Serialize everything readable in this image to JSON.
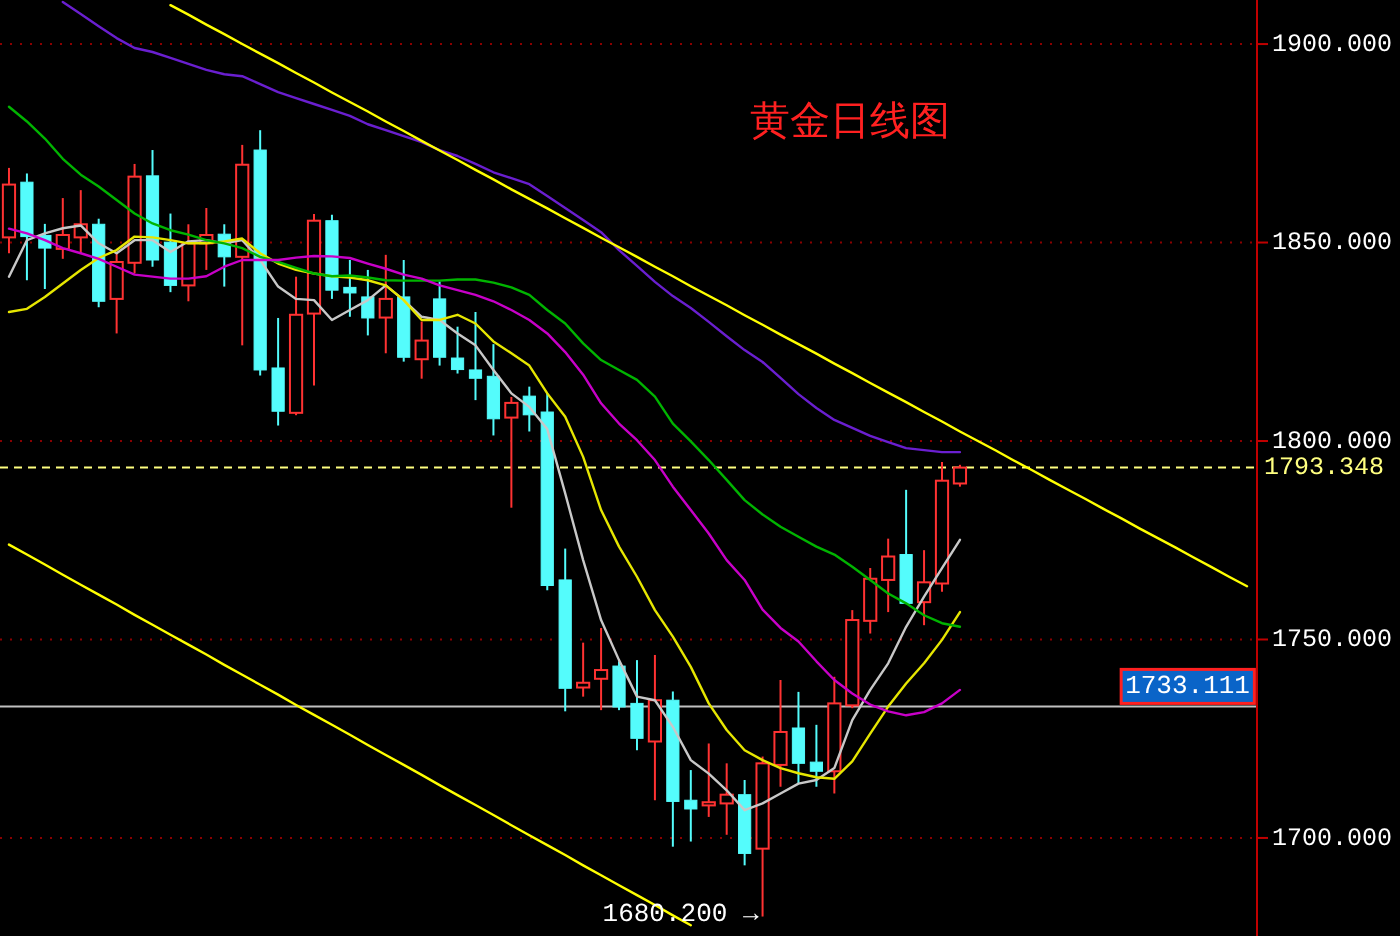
{
  "chart_data": {
    "type": "candlestick",
    "title": "黄金日线图",
    "categories": [
      null,
      null,
      null,
      null,
      null,
      null,
      null,
      null,
      null,
      null,
      null,
      null,
      null,
      null,
      null,
      null,
      null,
      null,
      null,
      null,
      null,
      null,
      null,
      null,
      null,
      null,
      null,
      null,
      null,
      null,
      null,
      null,
      null,
      null,
      null,
      null,
      null,
      null,
      null,
      null,
      null,
      null,
      null,
      null,
      null,
      null,
      null,
      null,
      null,
      null,
      null,
      null,
      null,
      null,
      null,
      null,
      null,
      null,
      null,
      null,
      null,
      null,
      null,
      null,
      null,
      null,
      null,
      null,
      null,
      null
    ],
    "ohlc": [
      [
        1851.3,
        1868.8,
        1847.3,
        1864.6
      ],
      [
        1865.2,
        1867.4,
        1840.5,
        1851.5
      ],
      [
        1851.8,
        1854.7,
        1838.3,
        1848.6
      ],
      [
        1848.4,
        1861.2,
        1845.9,
        1851.9
      ],
      [
        1851.3,
        1863.2,
        1847.3,
        1854.6
      ],
      [
        1854.6,
        1856.0,
        1833.7,
        1835.2
      ],
      [
        1835.8,
        1847.6,
        1827.1,
        1845.1
      ],
      [
        1844.9,
        1869.8,
        1842.2,
        1866.6
      ],
      [
        1866.8,
        1873.3,
        1843.9,
        1845.6
      ],
      [
        1850.1,
        1857.3,
        1837.5,
        1839.2
      ],
      [
        1839.2,
        1854.6,
        1835.2,
        1849.8
      ],
      [
        1849.8,
        1858.7,
        1843.1,
        1851.9
      ],
      [
        1852.1,
        1854.6,
        1838.9,
        1846.4
      ],
      [
        1846.4,
        1874.6,
        1824.1,
        1869.6
      ],
      [
        1873.3,
        1878.3,
        1816.5,
        1817.9
      ],
      [
        1818.4,
        1831.0,
        1803.9,
        1807.5
      ],
      [
        1807.1,
        1841.4,
        1806.5,
        1831.8
      ],
      [
        1832.1,
        1857.2,
        1814.0,
        1855.5
      ],
      [
        1855.5,
        1857.0,
        1835.8,
        1838.0
      ],
      [
        1838.7,
        1845.6,
        1831.3,
        1837.3
      ],
      [
        1836.3,
        1843.1,
        1826.6,
        1831.0
      ],
      [
        1831.1,
        1846.9,
        1822.1,
        1835.8
      ],
      [
        1836.3,
        1845.6,
        1820.0,
        1821.1
      ],
      [
        1820.6,
        1830.1,
        1815.7,
        1825.3
      ],
      [
        1835.8,
        1840.2,
        1819.0,
        1821.1
      ],
      [
        1820.9,
        1828.8,
        1817.0,
        1818.0
      ],
      [
        1817.9,
        1832.5,
        1810.3,
        1815.8
      ],
      [
        1816.3,
        1824.4,
        1801.4,
        1805.6
      ],
      [
        1805.9,
        1811.1,
        1783.2,
        1809.6
      ],
      [
        1811.3,
        1813.7,
        1802.4,
        1806.6
      ],
      [
        1807.3,
        1812.0,
        1762.4,
        1763.6
      ],
      [
        1765.0,
        1772.9,
        1731.9,
        1737.7
      ],
      [
        1737.9,
        1749.2,
        1735.6,
        1739.1
      ],
      [
        1740.1,
        1752.9,
        1732.2,
        1742.3
      ],
      [
        1743.3,
        1744.5,
        1732.2,
        1733.0
      ],
      [
        1733.9,
        1744.8,
        1722.1,
        1725.1
      ],
      [
        1724.3,
        1746.1,
        1709.5,
        1734.7
      ],
      [
        1734.7,
        1736.9,
        1697.8,
        1709.2
      ],
      [
        1709.5,
        1717.1,
        1699.1,
        1707.3
      ],
      [
        1708.2,
        1723.8,
        1705.3,
        1709.0
      ],
      [
        1708.7,
        1718.8,
        1700.8,
        1710.9
      ],
      [
        1710.9,
        1714.6,
        1693.1,
        1696.1
      ],
      [
        1697.3,
        1720.5,
        1680.2,
        1718.8
      ],
      [
        1718.4,
        1739.8,
        1712.9,
        1726.7
      ],
      [
        1727.7,
        1736.8,
        1713.7,
        1718.8
      ],
      [
        1719.1,
        1728.5,
        1712.9,
        1716.8
      ],
      [
        1716.8,
        1740.6,
        1711.2,
        1733.9
      ],
      [
        1733.4,
        1757.4,
        1732.7,
        1754.9
      ],
      [
        1754.7,
        1768.0,
        1751.5,
        1765.3
      ],
      [
        1765.0,
        1775.4,
        1756.9,
        1770.9
      ],
      [
        1771.4,
        1787.7,
        1759.1,
        1759.1
      ],
      [
        1759.4,
        1772.5,
        1753.6,
        1764.4
      ],
      [
        1764.1,
        1794.7,
        1762.0,
        1790.0
      ],
      [
        1789.3,
        1794.0,
        1788.5,
        1793.3
      ],
      null,
      null,
      null,
      null,
      null,
      null,
      null,
      null,
      null,
      null,
      null,
      null,
      null,
      null,
      null,
      null
    ],
    "colors": [
      "#ff3232",
      "#54fcfc",
      "#54fcfc",
      "#ff3232",
      "#ff3232",
      "#54fcfc",
      "#ff3232",
      "#ff3232",
      "#54fcfc",
      "#54fcfc",
      "#ff3232",
      "#ff3232",
      "#54fcfc",
      "#ff3232",
      "#54fcfc",
      "#54fcfc",
      "#ff3232",
      "#ff3232",
      "#54fcfc",
      "#54fcfc",
      "#54fcfc",
      "#ff3232",
      "#54fcfc",
      "#ff3232",
      "#54fcfc",
      "#54fcfc",
      "#54fcfc",
      "#54fcfc",
      "#ff3232",
      "#54fcfc",
      "#54fcfc",
      "#54fcfc",
      "#ff3232",
      "#ff3232",
      "#54fcfc",
      "#54fcfc",
      "#ff3232",
      "#54fcfc",
      "#54fcfc",
      "#ff3232",
      "#ff3232",
      "#54fcfc",
      "#ff3232",
      "#ff3232",
      "#54fcfc",
      "#54fcfc",
      "#ff3232",
      "#ff3232",
      "#ff3232",
      "#ff3232",
      "#54fcfc",
      "#ff3232",
      "#ff3232",
      "#ff3232",
      null,
      null,
      null,
      null,
      null,
      null,
      null,
      null,
      null,
      null,
      null,
      null,
      null,
      null,
      null,
      null
    ],
    "series": [
      {
        "type": "line",
        "color": "#c8c8c8",
        "values": [
          1841.4,
          1850.6,
          1852.3,
          1853.6,
          1854.3,
          1849.8,
          1847.3,
          1850.6,
          1850.6,
          1847.6,
          1850.3,
          1850.6,
          1849.8,
          1850.6,
          1845.6,
          1838.9,
          1835.8,
          1835.5,
          1830.5,
          1833.0,
          1835.5,
          1839.2,
          1835.5,
          1831.3,
          1830.5,
          1827.1,
          1824.1,
          1817.9,
          1812.0,
          1808.6,
          1803.0,
          1786.8,
          1770.0,
          1754.9,
          1744.8,
          1735.6,
          1734.7,
          1728.0,
          1719.6,
          1716.2,
          1712.0,
          1707.0,
          1708.7,
          1711.2,
          1713.7,
          1714.6,
          1717.6,
          1729.7,
          1737.3,
          1744.0,
          1753.2,
          1760.8,
          1768.0,
          1775.1,
          null,
          null,
          null,
          null,
          null,
          null,
          null,
          null,
          null,
          null,
          null,
          null,
          null,
          null,
          null,
          null
        ]
      },
      {
        "type": "line",
        "color": "#e6e600",
        "values": [
          1832.5,
          1833.3,
          1836.3,
          1839.7,
          1843.1,
          1846.1,
          1848.1,
          1851.5,
          1851.3,
          1850.6,
          1849.8,
          1849.8,
          1850.3,
          1851.0,
          1847.3,
          1844.7,
          1843.1,
          1842.2,
          1841.5,
          1841.2,
          1840.5,
          1839.2,
          1835.5,
          1830.5,
          1830.5,
          1831.8,
          1829.6,
          1825.1,
          1822.1,
          1819.0,
          1812.0,
          1806.1,
          1796.0,
          1782.6,
          1773.4,
          1765.8,
          1757.4,
          1750.7,
          1743.1,
          1733.9,
          1727.2,
          1722.1,
          1719.6,
          1717.6,
          1716.3,
          1715.3,
          1714.9,
          1719.3,
          1726.3,
          1733.1,
          1738.9,
          1744.0,
          1749.9,
          1756.9,
          null,
          null,
          null,
          null,
          null,
          null,
          null,
          null,
          null,
          null,
          null,
          null,
          null,
          null,
          null,
          null
        ]
      },
      {
        "type": "line",
        "color": "#00b400",
        "values": [
          1884.2,
          1880.5,
          1876.2,
          1871.1,
          1867.1,
          1864.1,
          1860.7,
          1857.3,
          1854.8,
          1853.1,
          1852.0,
          1850.6,
          1849.8,
          1848.6,
          1846.4,
          1845.1,
          1843.6,
          1842.2,
          1841.5,
          1841.7,
          1841.2,
          1840.5,
          1840.4,
          1840.4,
          1840.4,
          1840.7,
          1840.7,
          1839.9,
          1838.7,
          1836.8,
          1833.0,
          1829.6,
          1824.6,
          1820.4,
          1817.9,
          1815.4,
          1811.2,
          1804.4,
          1799.9,
          1795.2,
          1790.2,
          1785.1,
          1781.5,
          1778.4,
          1775.9,
          1773.4,
          1771.4,
          1768.3,
          1765.0,
          1761.6,
          1759.1,
          1756.1,
          1754.1,
          1753.2,
          null,
          null,
          null,
          null,
          null,
          null,
          null,
          null,
          null,
          null,
          null,
          null,
          null,
          null,
          null,
          null
        ]
      },
      {
        "type": "line",
        "color": "#c800c8",
        "values": [
          1853.5,
          1852.3,
          1850.6,
          1848.6,
          1847.3,
          1845.9,
          1843.9,
          1841.9,
          1841.4,
          1840.9,
          1840.9,
          1841.5,
          1843.9,
          1845.6,
          1845.6,
          1845.6,
          1846.2,
          1846.6,
          1846.5,
          1846.1,
          1844.7,
          1843.4,
          1841.9,
          1840.9,
          1839.2,
          1838.0,
          1836.8,
          1835.2,
          1833.0,
          1830.5,
          1827.1,
          1822.4,
          1816.7,
          1809.5,
          1804.4,
          1800.2,
          1795.2,
          1788.5,
          1782.6,
          1776.7,
          1770.0,
          1765.0,
          1757.5,
          1752.9,
          1749.5,
          1744.5,
          1739.8,
          1736.4,
          1733.6,
          1731.9,
          1730.9,
          1731.7,
          1733.9,
          1737.3,
          null,
          null,
          null,
          null,
          null,
          null,
          null,
          null,
          null,
          null,
          null,
          null,
          null,
          null,
          null,
          null
        ]
      },
      {
        "type": "line",
        "color": "#6a1fd0",
        "values": [
          null,
          null,
          null,
          1910.6,
          1907.6,
          1904.5,
          1901.5,
          1899.0,
          1898.0,
          1896.5,
          1895.0,
          1893.5,
          1892.4,
          1891.9,
          1889.9,
          1887.9,
          1886.4,
          1884.9,
          1883.4,
          1881.9,
          1879.8,
          1878.3,
          1876.8,
          1875.3,
          1873.3,
          1871.8,
          1869.8,
          1867.7,
          1866.2,
          1864.7,
          1861.7,
          1858.7,
          1855.7,
          1852.6,
          1848.1,
          1844.1,
          1840.1,
          1836.5,
          1833.5,
          1830.0,
          1826.4,
          1822.9,
          1819.9,
          1815.9,
          1811.8,
          1808.3,
          1805.3,
          1803.3,
          1801.3,
          1799.7,
          1798.2,
          1797.7,
          1797.2,
          1797.2,
          null,
          null,
          null,
          null,
          null,
          null,
          null,
          null,
          null,
          null,
          null,
          null,
          null,
          null,
          null,
          null
        ]
      },
      {
        "type": "line",
        "color": "#ffff00",
        "values": [
          null,
          null,
          null,
          null,
          null,
          null,
          null,
          null,
          null,
          1909.8,
          1907.4,
          1904.9,
          1902.5,
          1900.0,
          1897.6,
          1895.2,
          1892.7,
          1890.3,
          1887.8,
          1885.4,
          1883.0,
          1880.5,
          1878.1,
          1875.6,
          1873.2,
          1870.8,
          1868.3,
          1865.9,
          1863.4,
          1861.0,
          1858.6,
          1856.1,
          1853.7,
          1851.2,
          1848.8,
          1846.4,
          1843.9,
          1841.5,
          1839.0,
          1836.6,
          1834.2,
          1831.7,
          1829.3,
          1826.8,
          1824.4,
          1822.0,
          1819.5,
          1817.1,
          1814.6,
          1812.2,
          1809.8,
          1807.3,
          1804.9,
          1802.4,
          1800.0,
          1797.6,
          1795.1,
          1792.7,
          1790.2,
          1787.8,
          1785.4,
          1782.9,
          1780.5,
          1778.0,
          1775.6,
          1773.2,
          1770.7,
          1768.3,
          1765.8,
          1763.4
        ]
      },
      {
        "type": "line",
        "color": "#ffff00",
        "values": [
          1773.9,
          1771.4,
          1768.9,
          1766.3,
          1763.8,
          1761.3,
          1758.8,
          1756.2,
          1753.7,
          1751.2,
          1748.7,
          1746.2,
          1743.6,
          1741.1,
          1738.6,
          1736.1,
          1733.5,
          1731.0,
          1728.5,
          1726.0,
          1723.4,
          1720.9,
          1718.4,
          1715.9,
          1713.3,
          1710.8,
          1708.3,
          1705.8,
          1703.2,
          1700.7,
          1698.2,
          1695.7,
          1693.1,
          1690.6,
          1688.1,
          1685.6,
          1683.1,
          1680.5,
          1678.0,
          null,
          null,
          null,
          null,
          null,
          null,
          null,
          null,
          null,
          null,
          null,
          null,
          null,
          null,
          null,
          null,
          null,
          null,
          null,
          null,
          null,
          null,
          null,
          null,
          null,
          null,
          null,
          null,
          null,
          null,
          null
        ]
      }
    ],
    "ylim": [
      1675.3,
      1911.1
    ],
    "yticks": [
      {
        "value": 1700,
        "label": "1700.000"
      },
      {
        "value": 1750,
        "label": "1750.000"
      },
      {
        "value": 1800,
        "label": "1800.000"
      },
      {
        "value": 1850,
        "label": "1850.000"
      },
      {
        "value": 1900,
        "label": "1900.000"
      }
    ],
    "grid": "y",
    "tick_labels": "y",
    "ref_lines": [
      {
        "axis": "y",
        "value": 1793.348,
        "label": "1793.348",
        "color": "#ffff80",
        "line_style": "dashed"
      },
      {
        "axis": "y",
        "value": 1733.111,
        "label": "1733.111",
        "color": "#c0c0c0",
        "line_style": "solid"
      }
    ],
    "annotations": [
      {
        "text": "1680.200 →",
        "y": 1680.2
      }
    ]
  }
}
